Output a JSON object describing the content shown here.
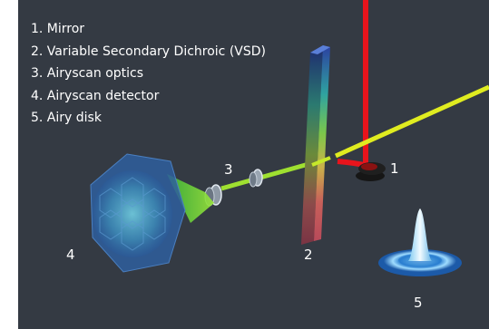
{
  "legend": {
    "items": [
      "1. Mirror",
      "2. Variable Secondary Dichroic (VSD)",
      "3. Airyscan optics",
      "4. Airyscan detector",
      "5. Airy disk"
    ]
  },
  "callouts": {
    "mirror": "1",
    "vsd": "2",
    "optics": "3",
    "detector": "4",
    "airy_disk": "5"
  },
  "colors": {
    "background": "#343a43",
    "excitation_beam": "#e8141c",
    "emission_beam": "#d8e81a",
    "detector": "#3f8fd0",
    "airy_disk": "#9fdcff"
  }
}
